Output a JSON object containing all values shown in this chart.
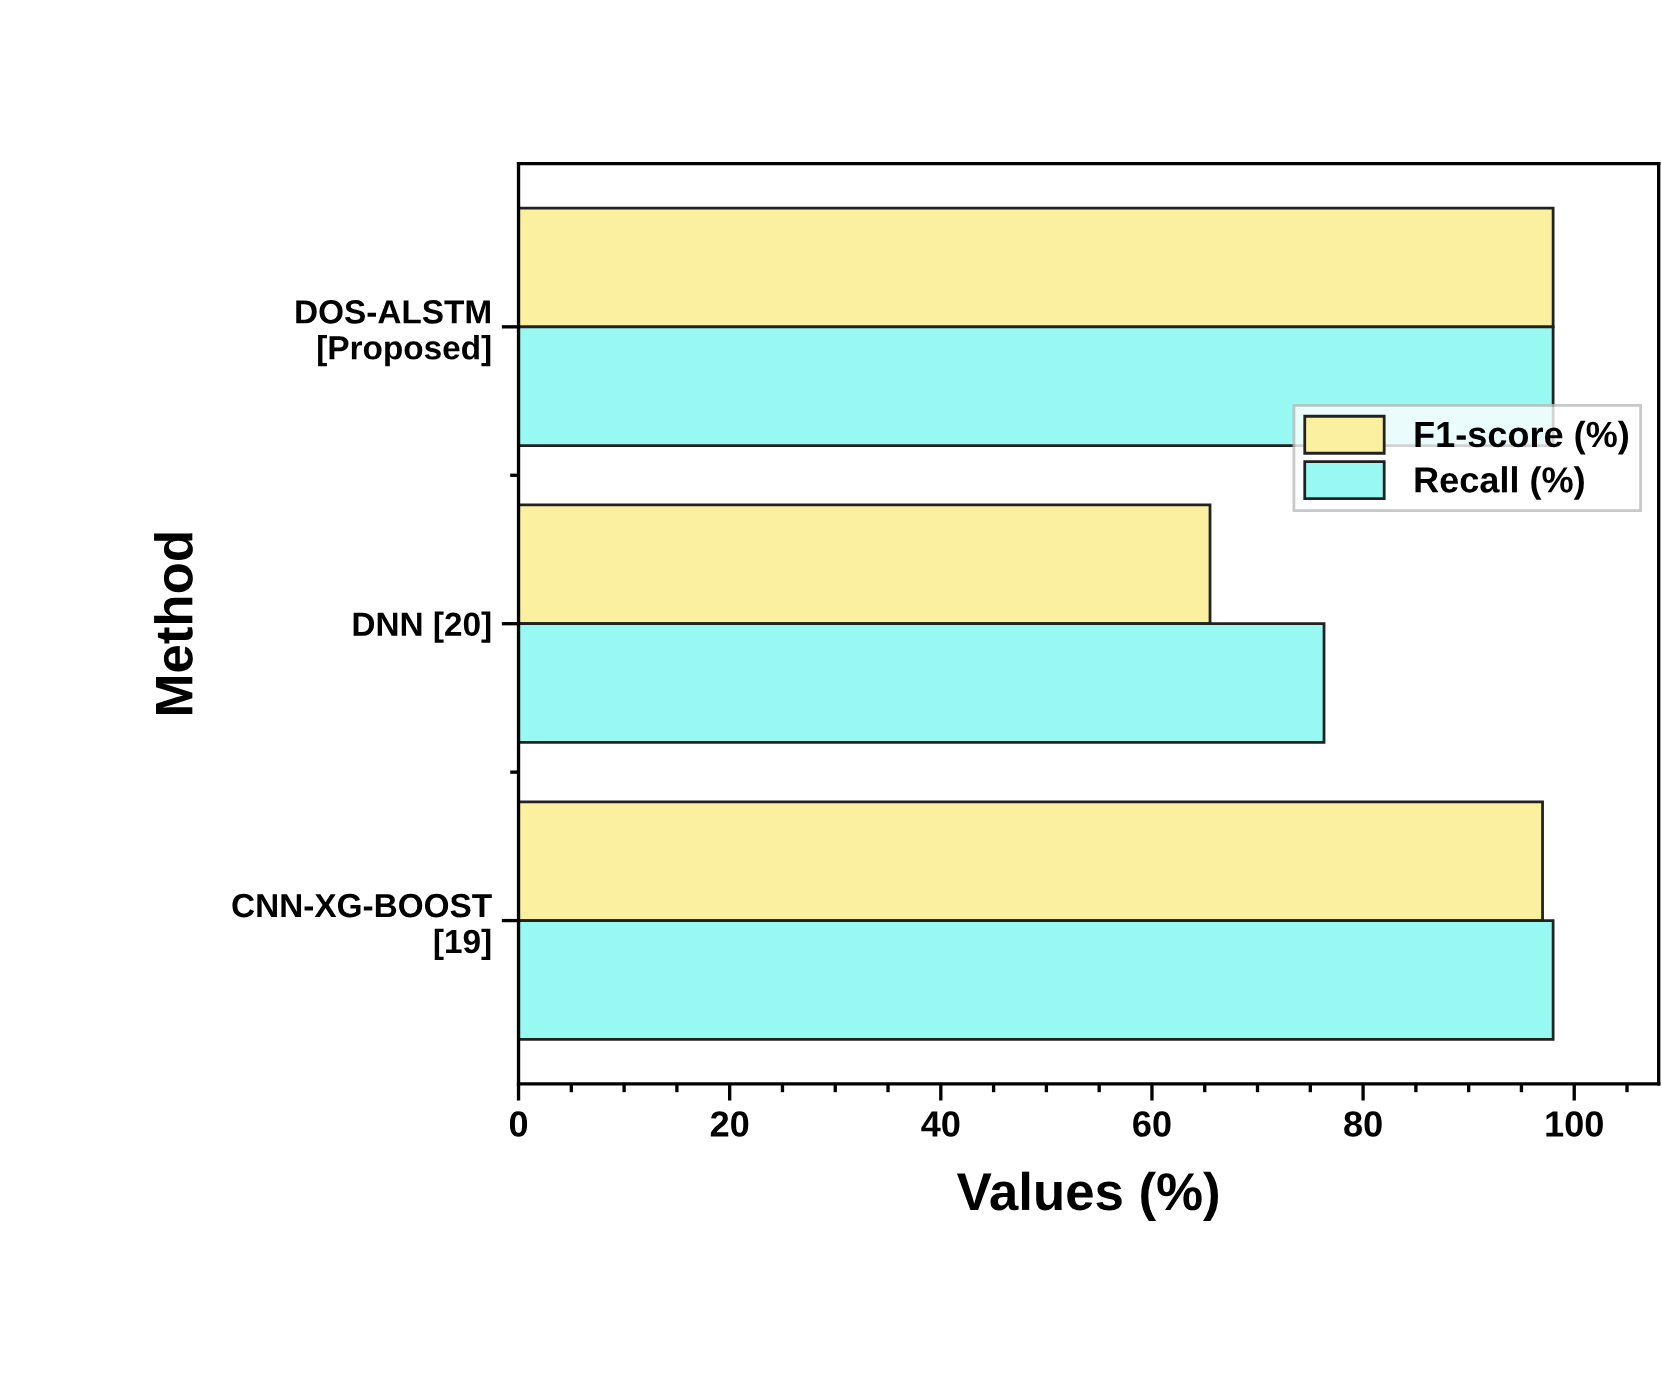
{
  "chart_data": {
    "type": "bar",
    "orientation": "horizontal",
    "xlabel": "Values (%)",
    "ylabel": "Method",
    "categories": [
      "DOS-ALSTM\n[Proposed]",
      "DNN [20]",
      "CNN-XG-BOOST\n[19]"
    ],
    "series": [
      {
        "name": "F1-score (%)",
        "color": "#fbf0a0",
        "values": [
          98,
          65.5,
          97
        ]
      },
      {
        "name": "Recall (%)",
        "color": "#98f8f2",
        "values": [
          98,
          76.3,
          98
        ]
      }
    ],
    "xlim": [
      0,
      108
    ],
    "xticks": [
      0,
      20,
      40,
      60,
      80,
      100
    ],
    "grid": false,
    "legend": "right"
  }
}
